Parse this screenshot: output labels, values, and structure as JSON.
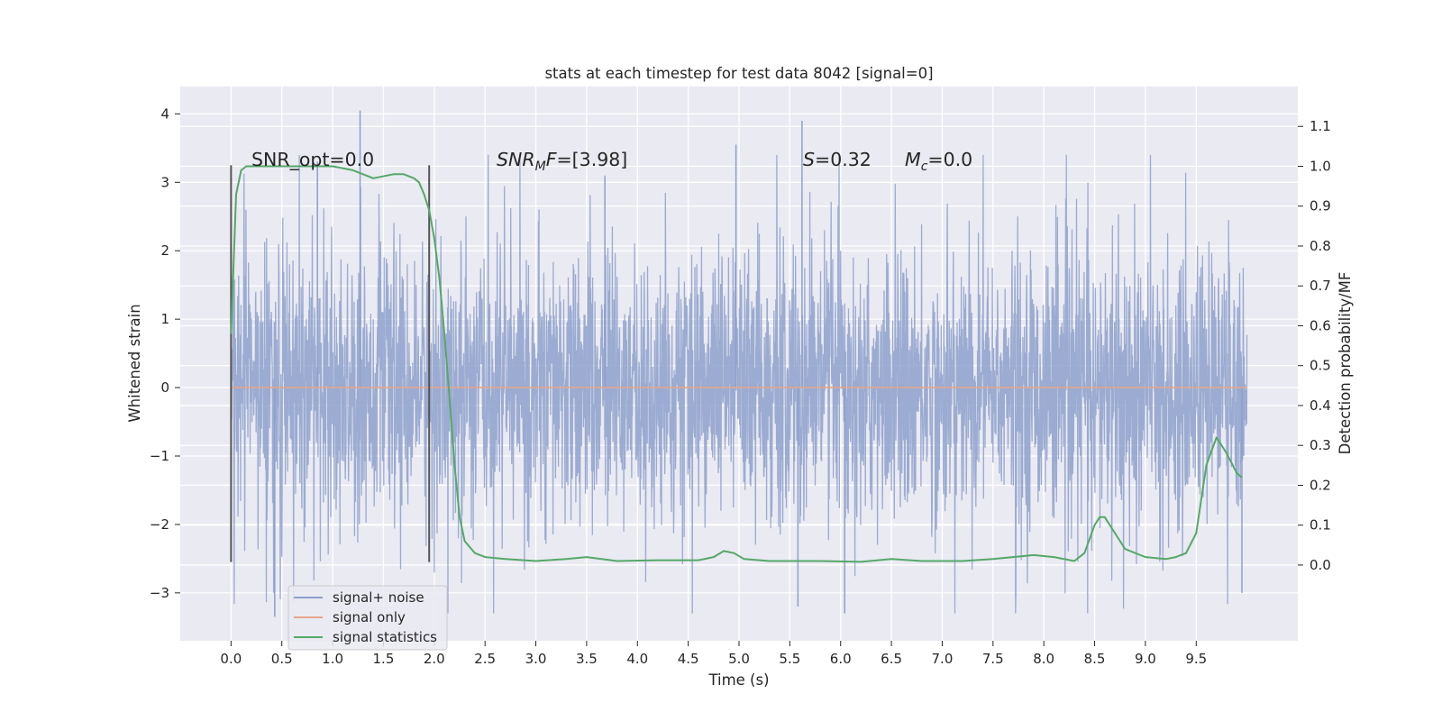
{
  "chart_data": {
    "type": "line",
    "title": "stats at each timestep for test data 8042 [signal=0]",
    "xlabel": "Time (s)",
    "ylabel": "Whitened strain",
    "y2label": "Detection probability/MF",
    "xlim": [
      -0.5,
      10.5
    ],
    "ylim": [
      -3.7,
      4.4
    ],
    "y2lim": [
      -0.19,
      1.2
    ],
    "x_ticks": [
      "0.0",
      "0.5",
      "1.0",
      "1.5",
      "2.0",
      "2.5",
      "3.0",
      "3.5",
      "4.0",
      "4.5",
      "5.0",
      "5.5",
      "6.0",
      "6.5",
      "7.0",
      "7.5",
      "8.0",
      "8.5",
      "9.0",
      "9.5"
    ],
    "y_ticks": [
      "−3",
      "−2",
      "−1",
      "0",
      "1",
      "2",
      "3",
      "4"
    ],
    "y2_ticks": [
      "0.0",
      "0.1",
      "0.2",
      "0.3",
      "0.4",
      "0.5",
      "0.6",
      "0.7",
      "0.8",
      "0.9",
      "1.0",
      "1.1"
    ],
    "grid": true,
    "legend_position": "lower-left",
    "background": "#eaeaf2",
    "colors": {
      "noise": "#8da0cb",
      "signal": "#e5a48a",
      "stats": "#55a868",
      "vline": "#555555"
    },
    "series": [
      {
        "name": "signal+ noise",
        "axis": "left",
        "x_range": [
          0.0,
          10.0
        ],
        "band": [
          -1.9,
          1.6
        ],
        "note_spikes": [
          {
            "x": 1.27,
            "y": 4.05
          },
          {
            "x": 5.62,
            "y": 3.9
          },
          {
            "x": 4.97,
            "y": 3.55
          },
          {
            "x": 0.85,
            "y": 3.3
          },
          {
            "x": 3.68,
            "y": 3.1
          },
          {
            "x": 5.58,
            "y": -3.2
          },
          {
            "x": 6.04,
            "y": -3.3
          },
          {
            "x": 0.43,
            "y": -3.35
          },
          {
            "x": 9.95,
            "y": -3.0
          }
        ]
      },
      {
        "name": "signal only",
        "axis": "left",
        "x": [
          0.0,
          10.0
        ],
        "y": [
          0.0,
          0.0
        ]
      },
      {
        "name": "signal statistics",
        "axis": "right",
        "x": [
          0.0,
          0.05,
          0.1,
          0.15,
          0.2,
          0.3,
          0.5,
          0.8,
          1.0,
          1.2,
          1.4,
          1.6,
          1.7,
          1.8,
          1.85,
          1.9,
          1.95,
          2.0,
          2.05,
          2.1,
          2.15,
          2.2,
          2.25,
          2.3,
          2.4,
          2.5,
          2.7,
          3.0,
          3.3,
          3.5,
          3.8,
          4.2,
          4.6,
          4.75,
          4.85,
          4.95,
          5.05,
          5.3,
          5.8,
          6.2,
          6.5,
          6.8,
          7.2,
          7.5,
          7.9,
          8.1,
          8.3,
          8.4,
          8.5,
          8.55,
          8.6,
          8.7,
          8.8,
          9.0,
          9.2,
          9.3,
          9.4,
          9.5,
          9.6,
          9.7,
          9.75,
          9.8,
          9.9,
          9.95
        ],
        "y": [
          0.58,
          0.93,
          0.99,
          1.0,
          1.0,
          1.0,
          1.0,
          1.0,
          1.0,
          0.99,
          0.97,
          0.98,
          0.98,
          0.97,
          0.96,
          0.93,
          0.89,
          0.82,
          0.72,
          0.58,
          0.42,
          0.25,
          0.12,
          0.06,
          0.03,
          0.02,
          0.015,
          0.01,
          0.015,
          0.02,
          0.01,
          0.012,
          0.012,
          0.02,
          0.035,
          0.03,
          0.015,
          0.01,
          0.01,
          0.008,
          0.015,
          0.01,
          0.01,
          0.015,
          0.025,
          0.02,
          0.01,
          0.03,
          0.1,
          0.12,
          0.12,
          0.08,
          0.04,
          0.02,
          0.015,
          0.02,
          0.03,
          0.08,
          0.25,
          0.32,
          0.3,
          0.28,
          0.23,
          0.22
        ]
      }
    ],
    "vlines": [
      {
        "x": 0.0,
        "ymin": -2.55,
        "ymax": 3.25
      },
      {
        "x": 1.95,
        "ymin": -2.55,
        "ymax": 3.25
      }
    ],
    "annotations": [
      {
        "id": "snr-opt",
        "x": 0.2,
        "y": 3.15,
        "text": "SNR_opt=0.0"
      },
      {
        "id": "snr-mf",
        "x": 2.6,
        "y": 3.15,
        "math_main": "SNR",
        "math_sub": "M",
        "math_tail": "F",
        "text": "=[3.98]"
      },
      {
        "id": "s-stat",
        "x": 5.62,
        "y": 3.15,
        "math_main": "S",
        "text": "=0.32"
      },
      {
        "id": "mc-stat",
        "x": 6.62,
        "y": 3.15,
        "math_main": "M",
        "math_sub": "c",
        "text": "=0.0"
      }
    ]
  }
}
